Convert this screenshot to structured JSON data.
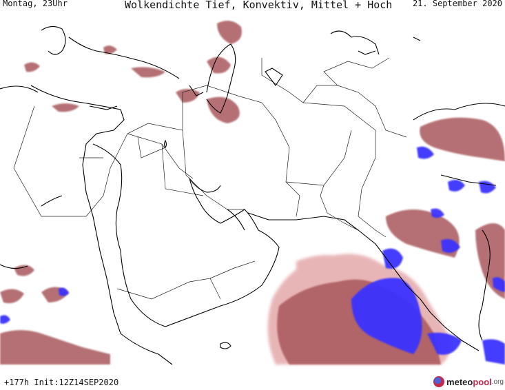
{
  "header": {
    "left": "Montag, 23Uhr",
    "title": "Wolkendichte  Tief, Konvektiv, Mittel + Hoch",
    "date": "21. September 2020"
  },
  "footer": {
    "run_info": "+177h Init:12Z14SEP2020"
  },
  "brand": {
    "name_part1": "meteo",
    "name_part2": "pool",
    "suffix": ".org",
    "icon": "meteopool-logo-icon"
  },
  "legend_colors": {
    "low_cloud": "#e6aeb0",
    "mid_cloud": "#a8585c",
    "high_cloud": "#8b3b40",
    "convective": "#3b32ff",
    "coastline": "#000000",
    "borders": "#222222"
  }
}
